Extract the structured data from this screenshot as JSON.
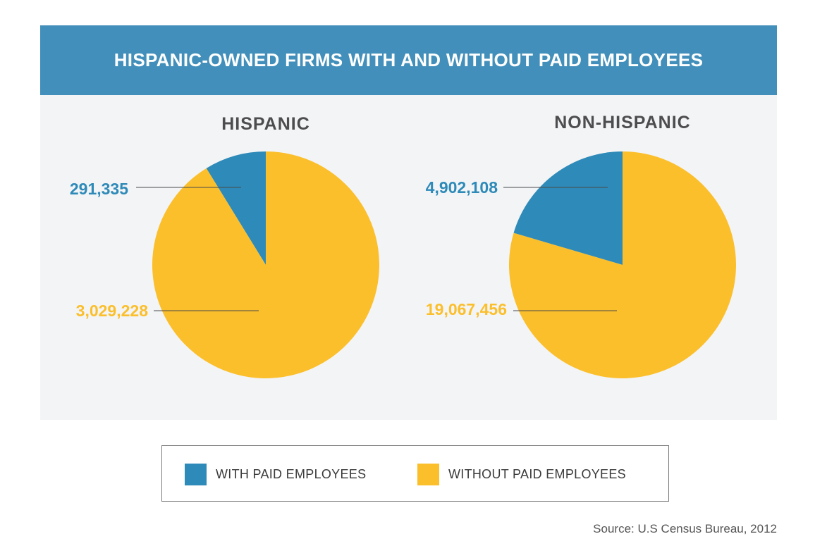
{
  "title": "HISPANIC-OWNED FIRMS WITH AND WITHOUT PAID EMPLOYEES",
  "chart_data": [
    {
      "type": "pie",
      "title": "HISPANIC",
      "slices": [
        {
          "label": "WITH PAID EMPLOYEES",
          "value": 291335,
          "value_label": "291,335",
          "color": "#2e8ab8"
        },
        {
          "label": "WITHOUT PAID EMPLOYEES",
          "value": 3029228,
          "value_label": "3,029,228",
          "color": "#fbbf2c"
        }
      ]
    },
    {
      "type": "pie",
      "title": "NON-HISPANIC",
      "slices": [
        {
          "label": "WITH PAID EMPLOYEES",
          "value": 4902108,
          "value_label": "4,902,108",
          "color": "#2e8ab8"
        },
        {
          "label": "WITHOUT PAID EMPLOYEES",
          "value": 19067456,
          "value_label": "19,067,456",
          "color": "#fbbf2c"
        }
      ]
    }
  ],
  "legend": [
    {
      "label": "WITH PAID EMPLOYEES",
      "color": "#2e8ab8"
    },
    {
      "label": "WITHOUT PAID EMPLOYEES",
      "color": "#fbbf2c"
    }
  ],
  "source": "Source: U.S Census Bureau, 2012"
}
